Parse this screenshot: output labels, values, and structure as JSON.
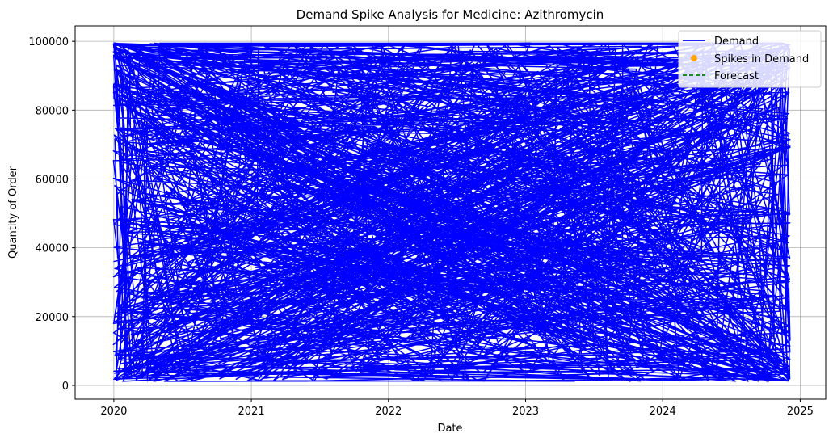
{
  "chart_data": {
    "type": "line",
    "title": "Demand Spike Analysis for Medicine: Azithromycin",
    "xlabel": "Date",
    "ylabel": "Quantity of Order",
    "xlim": [
      "2019-09-20",
      "2025-03-10"
    ],
    "ylim": [
      -4000,
      104500
    ],
    "x_ticks": [
      "2020",
      "2021",
      "2022",
      "2023",
      "2024",
      "2025"
    ],
    "y_ticks": [
      "0",
      "20000",
      "40000",
      "60000",
      "80000",
      "100000"
    ],
    "grid": true,
    "legend_position": "top-right",
    "legend": [
      {
        "label": "Demand",
        "style": "solid-line",
        "color": "#0000ff"
      },
      {
        "label": "Spikes in Demand",
        "style": "dot",
        "color": "#ffa500"
      },
      {
        "label": "Forecast",
        "style": "dashed-line",
        "color": "#008000"
      }
    ],
    "series": [
      {
        "name": "Demand",
        "color": "#0000ff",
        "x": [
          "2019-12-31",
          "2024-12-01",
          "2020-01-01",
          "2024-10-28",
          "2020-01-05",
          "2024-12-05",
          "2020-03-20",
          "2024-09-14",
          "2020-05-16",
          "2023-12-07"
        ],
        "y": [
          36000,
          79000,
          95500,
          2500,
          9000,
          69500,
          30000,
          85500,
          1200,
          84000
        ]
      },
      {
        "name": "Spikes in Demand",
        "color": "#ffa500",
        "x": [],
        "y": []
      },
      {
        "name": "Forecast",
        "color": "#008000",
        "x": [],
        "y": []
      }
    ]
  }
}
